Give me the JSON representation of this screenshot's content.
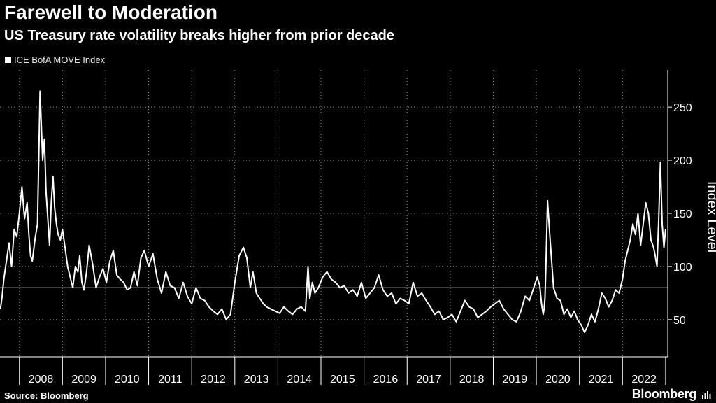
{
  "header": {
    "title": "Farewell to Moderation",
    "subtitle": "US Treasury rate volatility breaks higher from prior decade"
  },
  "footer": {
    "source": "Source: Bloomberg",
    "brand": "Bloomberg"
  },
  "colors": {
    "background": "#000000",
    "line": "#ffffff",
    "grid": "#8a8a8a"
  },
  "chart_data": {
    "type": "line",
    "title": "Farewell to Moderation",
    "subtitle": "US Treasury rate volatility breaks higher from prior decade",
    "ylabel": "Index Level",
    "xlabel": "",
    "legend": "top-left",
    "ylim": [
      15,
      285
    ],
    "xlim": [
      2007.55,
      2023.05
    ],
    "y_ticks": [
      50,
      100,
      150,
      200,
      250
    ],
    "x_ticks": [
      "2008",
      "2009",
      "2010",
      "2011",
      "2012",
      "2013",
      "2014",
      "2015",
      "2016",
      "2017",
      "2018",
      "2019",
      "2020",
      "2021",
      "2022"
    ],
    "reference_line": 80,
    "series": [
      {
        "name": "ICE BofA MOVE Index",
        "x": [
          2007.56,
          2007.6,
          2007.64,
          2007.7,
          2007.76,
          2007.82,
          2007.88,
          2007.94,
          2008.0,
          2008.06,
          2008.12,
          2008.18,
          2008.22,
          2008.26,
          2008.3,
          2008.36,
          2008.42,
          2008.48,
          2008.54,
          2008.58,
          2008.62,
          2008.66,
          2008.7,
          2008.74,
          2008.78,
          2008.82,
          2008.86,
          2008.9,
          2008.95,
          2009.0,
          2009.06,
          2009.12,
          2009.18,
          2009.24,
          2009.3,
          2009.36,
          2009.4,
          2009.45,
          2009.5,
          2009.56,
          2009.62,
          2009.7,
          2009.78,
          2009.86,
          2009.94,
          2010.02,
          2010.1,
          2010.18,
          2010.26,
          2010.34,
          2010.42,
          2010.5,
          2010.58,
          2010.66,
          2010.74,
          2010.82,
          2010.9,
          2011.0,
          2011.1,
          2011.2,
          2011.3,
          2011.4,
          2011.5,
          2011.6,
          2011.7,
          2011.8,
          2011.9,
          2012.0,
          2012.1,
          2012.2,
          2012.3,
          2012.4,
          2012.5,
          2012.6,
          2012.7,
          2012.8,
          2012.9,
          2013.0,
          2013.1,
          2013.2,
          2013.28,
          2013.36,
          2013.42,
          2013.5,
          2013.58,
          2013.66,
          2013.74,
          2013.84,
          2013.94,
          2014.04,
          2014.14,
          2014.24,
          2014.34,
          2014.44,
          2014.54,
          2014.64,
          2014.7,
          2014.74,
          2014.8,
          2014.86,
          2014.94,
          2015.04,
          2015.14,
          2015.24,
          2015.34,
          2015.44,
          2015.54,
          2015.64,
          2015.74,
          2015.84,
          2015.94,
          2016.04,
          2016.14,
          2016.24,
          2016.34,
          2016.44,
          2016.54,
          2016.64,
          2016.74,
          2016.84,
          2016.94,
          2017.04,
          2017.14,
          2017.24,
          2017.34,
          2017.44,
          2017.54,
          2017.64,
          2017.74,
          2017.84,
          2017.94,
          2018.04,
          2018.14,
          2018.24,
          2018.34,
          2018.44,
          2018.54,
          2018.64,
          2018.74,
          2018.84,
          2018.94,
          2019.04,
          2019.14,
          2019.24,
          2019.34,
          2019.44,
          2019.54,
          2019.64,
          2019.74,
          2019.84,
          2019.94,
          2020.02,
          2020.08,
          2020.12,
          2020.16,
          2020.18,
          2020.2,
          2020.22,
          2020.26,
          2020.32,
          2020.4,
          2020.48,
          2020.56,
          2020.64,
          2020.72,
          2020.8,
          2020.88,
          2020.96,
          2021.04,
          2021.12,
          2021.2,
          2021.28,
          2021.36,
          2021.44,
          2021.52,
          2021.6,
          2021.68,
          2021.76,
          2021.84,
          2021.92,
          2022.0,
          2022.06,
          2022.12,
          2022.18,
          2022.24,
          2022.3,
          2022.36,
          2022.42,
          2022.48,
          2022.54,
          2022.6,
          2022.66,
          2022.72,
          2022.76,
          2022.8,
          2022.84,
          2022.88,
          2022.92,
          2022.96,
          2023.0
        ],
        "values": [
          60,
          72,
          88,
          105,
          122,
          100,
          135,
          128,
          150,
          175,
          145,
          160,
          130,
          110,
          105,
          125,
          140,
          265,
          200,
          220,
          170,
          145,
          120,
          160,
          185,
          155,
          140,
          130,
          125,
          135,
          118,
          100,
          90,
          80,
          100,
          95,
          110,
          85,
          78,
          95,
          120,
          102,
          80,
          90,
          98,
          85,
          105,
          115,
          92,
          88,
          85,
          78,
          80,
          95,
          82,
          108,
          115,
          100,
          112,
          88,
          75,
          95,
          82,
          80,
          70,
          85,
          72,
          65,
          80,
          70,
          68,
          62,
          58,
          55,
          60,
          50,
          55,
          85,
          110,
          118,
          108,
          80,
          95,
          75,
          70,
          65,
          62,
          60,
          58,
          56,
          62,
          58,
          55,
          60,
          62,
          58,
          100,
          70,
          85,
          75,
          80,
          90,
          95,
          88,
          85,
          80,
          82,
          75,
          78,
          72,
          85,
          70,
          75,
          80,
          92,
          78,
          72,
          75,
          65,
          70,
          68,
          65,
          85,
          72,
          75,
          68,
          62,
          55,
          58,
          50,
          52,
          55,
          48,
          58,
          68,
          62,
          60,
          52,
          55,
          58,
          62,
          65,
          68,
          60,
          55,
          50,
          48,
          58,
          72,
          68,
          80,
          90,
          82,
          65,
          55,
          60,
          70,
          95,
          162,
          125,
          80,
          70,
          68,
          55,
          60,
          52,
          58,
          50,
          45,
          38,
          45,
          55,
          48,
          60,
          75,
          70,
          62,
          68,
          78,
          75,
          88,
          105,
          115,
          125,
          140,
          130,
          150,
          120,
          140,
          160,
          150,
          125,
          118,
          110,
          100,
          145,
          198,
          140,
          118,
          135
        ]
      }
    ]
  }
}
